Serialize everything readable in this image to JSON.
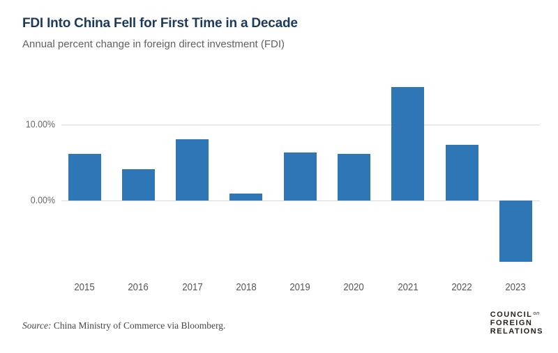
{
  "header": {
    "title": "FDI Into China Fell for First Time in a Decade",
    "subtitle": "Annual percent change in foreign direct investment (FDI)"
  },
  "chart_data": {
    "type": "bar",
    "title": "FDI Into China Fell for First Time in a Decade",
    "subtitle": "Annual percent change in foreign direct investment (FDI)",
    "categories": [
      "2015",
      "2016",
      "2017",
      "2018",
      "2019",
      "2020",
      "2021",
      "2022",
      "2023"
    ],
    "values": [
      6.1,
      4.1,
      8.0,
      0.9,
      6.3,
      6.1,
      14.9,
      7.3,
      -8.0
    ],
    "xlabel": "",
    "ylabel": "",
    "yticks": [
      {
        "value": 10,
        "label": "10.00%"
      },
      {
        "value": 0,
        "label": "0.00%"
      }
    ],
    "ylim": [
      -10,
      16.3
    ],
    "grid": true,
    "legend": false,
    "bar_color": "#2e76b6",
    "gridline_color": "#d8dadb"
  },
  "colors": {
    "title_navy": "#1b3a5e",
    "subtitle_gray": "#5d6165",
    "axis_label_gray": "#63686c",
    "bar_blue": "#2e76b6",
    "gridline_gray": "#d8dadb",
    "logo_black": "#27211d"
  },
  "footer": {
    "source_label": "Source:",
    "source_text": " China Ministry of Commerce via Bloomberg.",
    "logo": {
      "line1": "COUNCIL",
      "on_word": "on",
      "line2": "FOREIGN",
      "line3": "RELATIONS"
    }
  }
}
